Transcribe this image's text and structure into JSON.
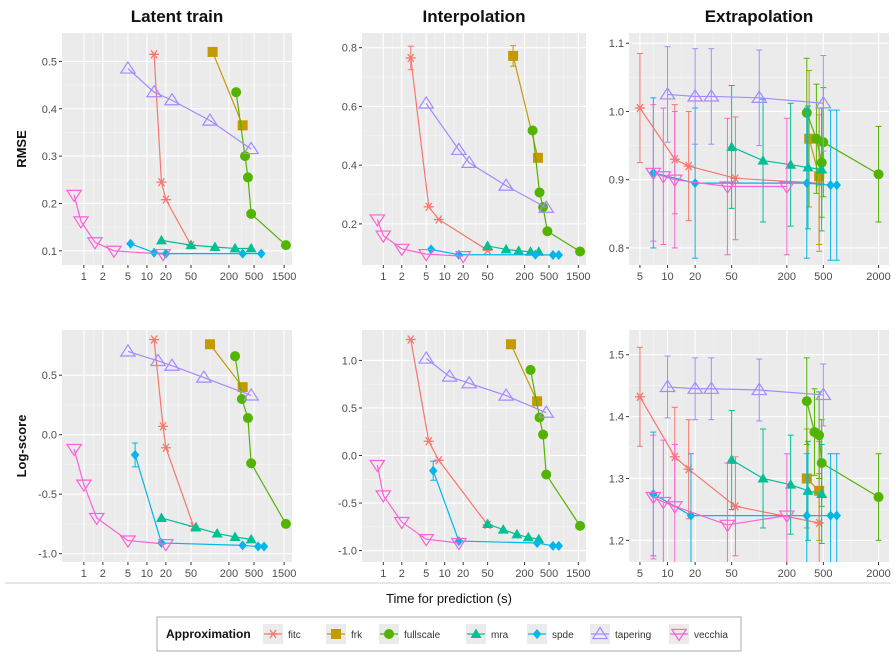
{
  "xlabel": "Time for prediction (s)",
  "legend": {
    "title": "Approximation",
    "entries": [
      "fitc",
      "frk",
      "fullscale",
      "mra",
      "spde",
      "tapering",
      "vecchia"
    ]
  },
  "colors": {
    "fitc": "#F8766D",
    "frk": "#C49A00",
    "fullscale": "#53B400",
    "mra": "#00C094",
    "spde": "#00B6EB",
    "tapering": "#A58AFF",
    "vecchia": "#FB61D7"
  },
  "chart_data": [
    {
      "type": "line",
      "title": "Latent train",
      "ylabel": "RMSE",
      "xscale": "log",
      "xlim": [
        0.45,
        2000
      ],
      "xticks": [
        1,
        2,
        5,
        10,
        20,
        50,
        200,
        500,
        1500
      ],
      "xtick_labels": [
        "1",
        "2",
        "5",
        "10",
        "20",
        "50",
        "200",
        "500",
        "1500"
      ],
      "ylim": [
        0.07,
        0.56
      ],
      "yticks": [
        0.1,
        0.2,
        0.3,
        0.4,
        0.5
      ],
      "ytick_labels": [
        "0.1",
        "0.2",
        "0.3",
        "0.4",
        "0.5"
      ],
      "series": [
        {
          "name": "fitc",
          "x": [
            13,
            17,
            20,
            50
          ],
          "y": [
            0.515,
            0.245,
            0.208,
            0.112
          ]
        },
        {
          "name": "frk",
          "x": [
            110,
            330
          ],
          "y": [
            0.52,
            0.365
          ]
        },
        {
          "name": "fullscale",
          "x": [
            260,
            360,
            400,
            450,
            1600
          ],
          "y": [
            0.435,
            0.3,
            0.255,
            0.178,
            0.112
          ]
        },
        {
          "name": "mra",
          "x": [
            17,
            50,
            120,
            250,
            450
          ],
          "y": [
            0.122,
            0.112,
            0.108,
            0.105,
            0.105
          ]
        },
        {
          "name": "spde",
          "x": [
            5.5,
            13,
            20,
            330,
            650
          ],
          "y": [
            0.115,
            0.096,
            0.094,
            0.094,
            0.094
          ]
        },
        {
          "name": "tapering",
          "x": [
            5,
            13,
            25,
            100,
            450
          ],
          "y": [
            0.485,
            0.435,
            0.418,
            0.375,
            0.315
          ]
        },
        {
          "name": "vecchia",
          "x": [
            0.7,
            0.9,
            1.5,
            3,
            18
          ],
          "y": [
            0.218,
            0.162,
            0.118,
            0.1,
            0.093
          ]
        }
      ]
    },
    {
      "type": "line",
      "title": "Interpolation",
      "ylabel": "",
      "xscale": "log",
      "xlim": [
        0.45,
        2000
      ],
      "xticks": [
        1,
        2,
        5,
        10,
        20,
        50,
        200,
        500,
        1500
      ],
      "xtick_labels": [
        "1",
        "2",
        "5",
        "10",
        "20",
        "50",
        "200",
        "500",
        "1500"
      ],
      "ylim": [
        0.06,
        0.85
      ],
      "yticks": [
        0.2,
        0.4,
        0.6,
        0.8
      ],
      "ytick_labels": [
        "0.2",
        "0.4",
        "0.6",
        "0.8"
      ],
      "series": [
        {
          "name": "fitc",
          "x": [
            2.8,
            5.5,
            8,
            50
          ],
          "y": [
            0.765,
            0.258,
            0.215,
            0.11
          ],
          "err": [
            0.04,
            0,
            0,
            0
          ]
        },
        {
          "name": "frk",
          "x": [
            130,
            330
          ],
          "y": [
            0.772,
            0.425
          ],
          "err": [
            0.035,
            0
          ]
        },
        {
          "name": "fullscale",
          "x": [
            270,
            350,
            400,
            470,
            1600
          ],
          "y": [
            0.518,
            0.307,
            0.257,
            0.175,
            0.106
          ]
        },
        {
          "name": "mra",
          "x": [
            50,
            100,
            160,
            250,
            340
          ],
          "y": [
            0.125,
            0.113,
            0.108,
            0.105,
            0.105
          ]
        },
        {
          "name": "spde",
          "x": [
            6,
            17,
            300,
            580,
            720
          ],
          "y": [
            0.113,
            0.095,
            0.095,
            0.094,
            0.094
          ]
        },
        {
          "name": "tapering",
          "x": [
            5,
            17,
            25,
            100,
            450
          ],
          "y": [
            0.61,
            0.452,
            0.408,
            0.33,
            0.255
          ]
        },
        {
          "name": "vecchia",
          "x": [
            0.8,
            1,
            2,
            5,
            20
          ],
          "y": [
            0.215,
            0.16,
            0.115,
            0.097,
            0.09
          ]
        }
      ]
    },
    {
      "type": "line",
      "title": "Extrapolation",
      "ylabel": "",
      "xscale": "log",
      "xlim": [
        3.8,
        2600
      ],
      "xticks": [
        5,
        10,
        20,
        50,
        200,
        500,
        2000
      ],
      "xtick_labels": [
        "5",
        "10",
        "20",
        "50",
        "200",
        "500",
        "2000"
      ],
      "ylim": [
        0.775,
        1.115
      ],
      "yticks": [
        0.8,
        0.9,
        1.0,
        1.1
      ],
      "ytick_labels": [
        "0.8",
        "0.9",
        "1.0",
        "1.1"
      ],
      "series": [
        {
          "name": "fitc",
          "x": [
            5,
            12,
            17,
            55,
            450
          ],
          "y": [
            1.005,
            0.93,
            0.92,
            0.902,
            0.895
          ],
          "err": [
            0.08,
            0.08,
            0.08,
            0.09,
            0.1
          ]
        },
        {
          "name": "frk",
          "x": [
            350,
            450
          ],
          "y": [
            0.96,
            0.905
          ],
          "err": [
            0.1,
            0.1
          ]
        },
        {
          "name": "fullscale",
          "x": [
            330,
            420,
            480,
            500,
            2000
          ],
          "y": [
            0.998,
            0.96,
            0.925,
            0.955,
            0.908
          ],
          "err": [
            0.08,
            0.08,
            0.08,
            0.08,
            0.07
          ]
        },
        {
          "name": "mra",
          "x": [
            50,
            110,
            220,
            340,
            480
          ],
          "y": [
            0.948,
            0.928,
            0.922,
            0.918,
            0.915
          ],
          "err": [
            0.09,
            0.09,
            0.09,
            0.09,
            0.09
          ]
        },
        {
          "name": "spde",
          "x": [
            7,
            20,
            330,
            600,
            700
          ],
          "y": [
            0.91,
            0.895,
            0.895,
            0.892,
            0.892
          ],
          "err": [
            0.11,
            0.11,
            0.11,
            0.11,
            0.11
          ]
        },
        {
          "name": "tapering",
          "x": [
            10,
            20,
            30,
            100,
            500
          ],
          "y": [
            1.025,
            1.022,
            1.022,
            1.02,
            1.012
          ],
          "err": [
            0.07,
            0.07,
            0.07,
            0.07,
            0.07
          ]
        },
        {
          "name": "vecchia",
          "x": [
            7,
            9,
            12,
            45,
            200
          ],
          "y": [
            0.91,
            0.905,
            0.9,
            0.89,
            0.89
          ],
          "err": [
            0.1,
            0.1,
            0.1,
            0.1,
            0.1
          ]
        }
      ]
    },
    {
      "type": "line",
      "title": "",
      "ylabel": "Log-score",
      "xscale": "log",
      "xlim": [
        0.45,
        2000
      ],
      "xticks": [
        1,
        2,
        5,
        10,
        20,
        50,
        200,
        500,
        1500
      ],
      "xtick_labels": [
        "1",
        "2",
        "5",
        "10",
        "20",
        "50",
        "200",
        "500",
        "1500"
      ],
      "ylim": [
        -1.07,
        0.88
      ],
      "yticks": [
        -1.0,
        -0.5,
        0.0,
        0.5
      ],
      "ytick_labels": [
        "-1.0",
        "-0.5",
        "0.0",
        "0.5"
      ],
      "series": [
        {
          "name": "fitc",
          "x": [
            13,
            18,
            20,
            55
          ],
          "y": [
            0.8,
            0.07,
            -0.11,
            -0.77
          ]
        },
        {
          "name": "frk",
          "x": [
            100,
            330
          ],
          "y": [
            0.76,
            0.4
          ]
        },
        {
          "name": "fullscale",
          "x": [
            250,
            320,
            400,
            450,
            1600
          ],
          "y": [
            0.66,
            0.3,
            0.14,
            -0.24,
            -0.75
          ]
        },
        {
          "name": "mra",
          "x": [
            17,
            60,
            130,
            250,
            450
          ],
          "y": [
            -0.7,
            -0.78,
            -0.83,
            -0.86,
            -0.88
          ]
        },
        {
          "name": "spde",
          "x": [
            6.5,
            17,
            330,
            580,
            720
          ],
          "y": [
            -0.17,
            -0.91,
            -0.93,
            -0.94,
            -0.94
          ],
          "err": [
            0.1,
            0,
            0,
            0,
            0
          ]
        },
        {
          "name": "tapering",
          "x": [
            5,
            15,
            25,
            80,
            450
          ],
          "y": [
            0.7,
            0.62,
            0.58,
            0.48,
            0.33
          ]
        },
        {
          "name": "vecchia",
          "x": [
            0.7,
            1,
            1.6,
            5,
            20
          ],
          "y": [
            -0.12,
            -0.42,
            -0.7,
            -0.89,
            -0.92
          ]
        }
      ]
    },
    {
      "type": "line",
      "title": "",
      "ylabel": "",
      "xscale": "log",
      "xlim": [
        0.45,
        2000
      ],
      "xticks": [
        1,
        2,
        5,
        10,
        20,
        50,
        200,
        500,
        1500
      ],
      "xtick_labels": [
        "1",
        "2",
        "5",
        "10",
        "20",
        "50",
        "200",
        "500",
        "1500"
      ],
      "ylim": [
        -1.12,
        1.32
      ],
      "yticks": [
        -1.0,
        -0.5,
        0.0,
        0.5,
        1.0
      ],
      "ytick_labels": [
        "-1.0",
        "-0.5",
        "0.0",
        "0.5",
        "1.0"
      ],
      "series": [
        {
          "name": "fitc",
          "x": [
            2.8,
            5.5,
            8,
            50
          ],
          "y": [
            1.22,
            0.15,
            -0.05,
            -0.73
          ]
        },
        {
          "name": "frk",
          "x": [
            120,
            320
          ],
          "y": [
            1.17,
            0.57
          ]
        },
        {
          "name": "fullscale",
          "x": [
            250,
            350,
            400,
            450,
            1600
          ],
          "y": [
            0.9,
            0.4,
            0.22,
            -0.2,
            -0.74
          ]
        },
        {
          "name": "mra",
          "x": [
            50,
            90,
            150,
            230,
            340
          ],
          "y": [
            -0.72,
            -0.78,
            -0.83,
            -0.86,
            -0.88
          ]
        },
        {
          "name": "spde",
          "x": [
            6.5,
            17,
            320,
            580,
            720
          ],
          "y": [
            -0.16,
            -0.9,
            -0.92,
            -0.95,
            -0.95
          ],
          "err": [
            0.1,
            0,
            0,
            0,
            0
          ]
        },
        {
          "name": "tapering",
          "x": [
            5,
            12,
            25,
            100,
            450
          ],
          "y": [
            1.02,
            0.83,
            0.76,
            0.63,
            0.45
          ]
        },
        {
          "name": "vecchia",
          "x": [
            0.8,
            1,
            2,
            5,
            17
          ],
          "y": [
            -0.1,
            -0.42,
            -0.7,
            -0.88,
            -0.92
          ]
        }
      ]
    },
    {
      "type": "line",
      "title": "",
      "ylabel": "",
      "xscale": "log",
      "xlim": [
        3.8,
        2600
      ],
      "xticks": [
        5,
        10,
        20,
        50,
        200,
        500,
        2000
      ],
      "xtick_labels": [
        "5",
        "10",
        "20",
        "50",
        "200",
        "500",
        "2000"
      ],
      "ylim": [
        1.165,
        1.54
      ],
      "yticks": [
        1.2,
        1.3,
        1.4,
        1.5
      ],
      "ytick_labels": [
        "1.2",
        "1.3",
        "1.4",
        "1.5"
      ],
      "series": [
        {
          "name": "fitc",
          "x": [
            5,
            12,
            17,
            55,
            450
          ],
          "y": [
            1.432,
            1.335,
            1.315,
            1.255,
            1.228
          ],
          "err": [
            0.08,
            0.08,
            0.08,
            0.08,
            0.08
          ]
        },
        {
          "name": "frk",
          "x": [
            330,
            450
          ],
          "y": [
            1.3,
            1.28
          ],
          "err": [
            0.08,
            0.08
          ]
        },
        {
          "name": "fullscale",
          "x": [
            330,
            400,
            450,
            480,
            2000
          ],
          "y": [
            1.425,
            1.375,
            1.37,
            1.325,
            1.27
          ],
          "err": [
            0.07,
            0.07,
            0.07,
            0.07,
            0.07
          ]
        },
        {
          "name": "mra",
          "x": [
            50,
            110,
            220,
            340,
            480
          ],
          "y": [
            1.33,
            1.3,
            1.29,
            1.28,
            1.275
          ],
          "err": [
            0.08,
            0.08,
            0.08,
            0.08,
            0.08
          ]
        },
        {
          "name": "spde",
          "x": [
            7,
            18,
            330,
            600,
            700
          ],
          "y": [
            1.275,
            1.24,
            1.24,
            1.24,
            1.24
          ],
          "err": [
            0.1,
            0.1,
            0.1,
            0.1,
            0.1
          ]
        },
        {
          "name": "tapering",
          "x": [
            10,
            20,
            30,
            100,
            500
          ],
          "y": [
            1.448,
            1.445,
            1.445,
            1.443,
            1.435
          ],
          "err": [
            0.05,
            0.05,
            0.05,
            0.05,
            0.05
          ]
        },
        {
          "name": "vecchia",
          "x": [
            7,
            9,
            12,
            45,
            200
          ],
          "y": [
            1.27,
            1.262,
            1.255,
            1.225,
            1.24
          ],
          "err": [
            0.1,
            0.1,
            0.1,
            0.1,
            0.1
          ]
        }
      ]
    }
  ]
}
